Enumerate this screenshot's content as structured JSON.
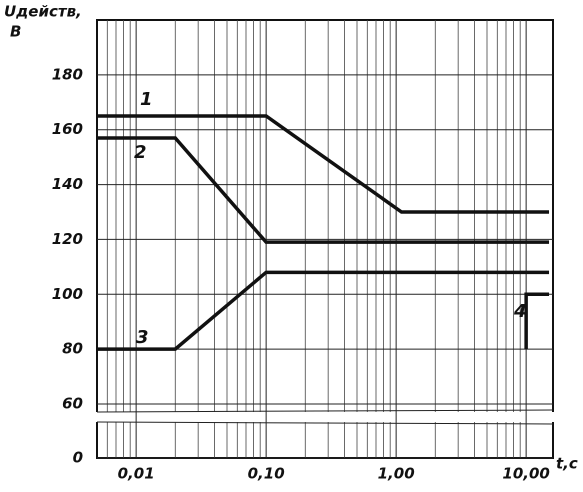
{
  "chart_data": {
    "type": "line",
    "y_label": "Uдейств,",
    "y_unit": "В",
    "x_label": "t,c",
    "xscale": "log",
    "xlim": [
      0.005,
      15
    ],
    "xticks": [
      {
        "value": 0.01,
        "label": "0,01"
      },
      {
        "value": 0.1,
        "label": "0,10"
      },
      {
        "value": 1,
        "label": "1,00"
      },
      {
        "value": 10,
        "label": "10,00"
      }
    ],
    "ylim": [
      0,
      200
    ],
    "yticks": [
      0,
      60,
      80,
      100,
      120,
      140,
      160,
      180
    ],
    "y_break": [
      0,
      60
    ],
    "grid": true,
    "series": [
      {
        "name": "1",
        "color": "#111",
        "x": [
          0.005,
          0.1,
          1.1,
          15
        ],
        "values": [
          165,
          165,
          130,
          130
        ]
      },
      {
        "name": "2",
        "color": "#111",
        "x": [
          0.005,
          0.02,
          0.1,
          15
        ],
        "values": [
          157,
          157,
          119,
          119
        ]
      },
      {
        "name": "3",
        "color": "#111",
        "x": [
          0.005,
          0.02,
          0.1,
          15
        ],
        "values": [
          80,
          80,
          108,
          108
        ]
      },
      {
        "name": "4",
        "color": "#111",
        "x": [
          10,
          10,
          15
        ],
        "values": [
          80,
          100,
          100
        ]
      }
    ]
  }
}
